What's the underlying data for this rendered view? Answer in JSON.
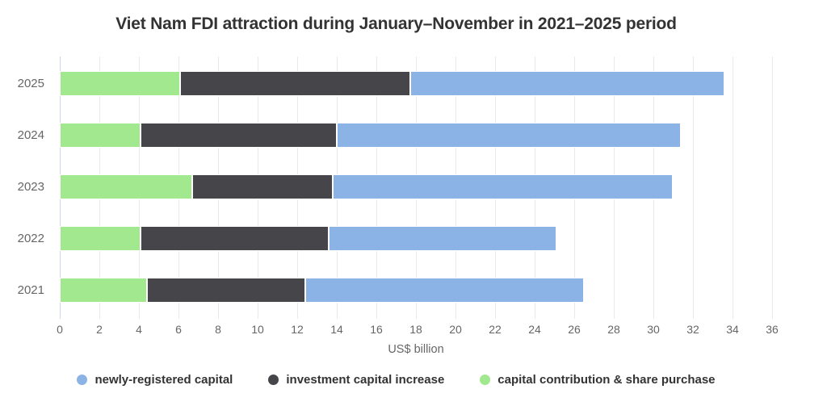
{
  "title": "Viet Nam FDI attraction during January–November in 2021–2025 period",
  "chart_data": {
    "type": "bar",
    "orientation": "horizontal",
    "stacked": true,
    "title": "Viet Nam FDI attraction during January–November in 2021–2025 period",
    "xlabel": "US$ billion",
    "xlim": [
      0,
      36
    ],
    "xticks": [
      0,
      2,
      4,
      6,
      8,
      10,
      12,
      14,
      16,
      18,
      20,
      22,
      24,
      26,
      28,
      30,
      32,
      34,
      36
    ],
    "grid": true,
    "legend_position": "bottom",
    "categories": [
      "2025",
      "2024",
      "2023",
      "2022",
      "2021"
    ],
    "series": [
      {
        "name": "capital contribution & share purchase",
        "color": "#a2e88e",
        "values": [
          6.1,
          4.1,
          6.7,
          4.1,
          4.4
        ]
      },
      {
        "name": "investment capital increase",
        "color": "#45454a",
        "values": [
          11.6,
          9.9,
          7.1,
          9.5,
          8.0
        ]
      },
      {
        "name": "newly-registered capital",
        "color": "#8bb3e5",
        "values": [
          15.9,
          17.4,
          17.2,
          11.5,
          14.1
        ]
      }
    ],
    "totals": [
      33.6,
      31.4,
      31.0,
      25.1,
      26.5
    ],
    "legend": [
      {
        "label": "newly-registered capital",
        "color": "#8bb3e5"
      },
      {
        "label": "investment capital increase",
        "color": "#45454a"
      },
      {
        "label": "capital contribution & share purchase",
        "color": "#a2e88e"
      }
    ],
    "styles": {
      "gridline_color": "#e9e9e9",
      "axis_line_color": "#ccd6eb",
      "text_color": "#666666",
      "title_color": "#333333"
    }
  }
}
